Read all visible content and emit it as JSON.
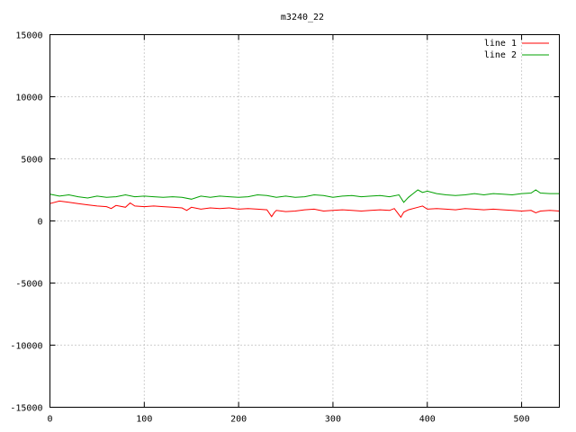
{
  "chart_data": {
    "type": "line",
    "title": "m3240_22",
    "xlabel": "",
    "ylabel": "",
    "xlim": [
      0,
      540
    ],
    "ylim": [
      -15000,
      15000
    ],
    "xticks": [
      0,
      100,
      200,
      300,
      400,
      500
    ],
    "yticks": [
      -15000,
      -10000,
      -5000,
      0,
      5000,
      10000,
      15000
    ],
    "grid": true,
    "legend_position": "top-right",
    "series": [
      {
        "name": "line 1",
        "color": "#ff0000",
        "x": [
          0,
          10,
          20,
          30,
          40,
          50,
          60,
          65,
          70,
          80,
          85,
          90,
          100,
          110,
          120,
          130,
          140,
          145,
          150,
          160,
          170,
          180,
          190,
          200,
          210,
          220,
          230,
          235,
          238,
          240,
          250,
          260,
          270,
          280,
          290,
          300,
          310,
          320,
          330,
          340,
          350,
          360,
          365,
          370,
          372,
          375,
          380,
          390,
          395,
          400,
          410,
          420,
          430,
          440,
          450,
          460,
          470,
          480,
          490,
          500,
          510,
          515,
          520,
          530,
          540
        ],
        "y": [
          1400,
          1600,
          1500,
          1400,
          1300,
          1200,
          1150,
          1000,
          1250,
          1100,
          1450,
          1200,
          1150,
          1200,
          1150,
          1100,
          1050,
          850,
          1100,
          950,
          1050,
          1000,
          1050,
          950,
          1000,
          950,
          900,
          350,
          700,
          850,
          750,
          800,
          900,
          950,
          800,
          850,
          900,
          850,
          800,
          850,
          900,
          850,
          1000,
          500,
          300,
          700,
          900,
          1100,
          1200,
          950,
          1000,
          950,
          900,
          1000,
          950,
          900,
          950,
          900,
          850,
          800,
          850,
          650,
          800,
          850,
          800
        ]
      },
      {
        "name": "line 2",
        "color": "#00a000",
        "x": [
          0,
          10,
          20,
          30,
          40,
          50,
          60,
          70,
          80,
          90,
          100,
          110,
          120,
          130,
          140,
          150,
          160,
          170,
          180,
          190,
          200,
          210,
          220,
          230,
          240,
          250,
          260,
          270,
          280,
          290,
          300,
          310,
          320,
          330,
          340,
          350,
          360,
          370,
          375,
          380,
          385,
          390,
          395,
          400,
          410,
          420,
          430,
          440,
          450,
          460,
          470,
          480,
          490,
          500,
          510,
          515,
          520,
          530,
          540
        ],
        "y": [
          2150,
          2000,
          2100,
          1950,
          1850,
          2000,
          1900,
          1950,
          2100,
          1950,
          2000,
          1950,
          1900,
          1950,
          1900,
          1750,
          2000,
          1900,
          2000,
          1950,
          1900,
          1950,
          2100,
          2050,
          1900,
          2000,
          1900,
          1950,
          2100,
          2050,
          1900,
          2000,
          2050,
          1950,
          2000,
          2050,
          1950,
          2100,
          1500,
          1900,
          2200,
          2500,
          2300,
          2400,
          2200,
          2100,
          2050,
          2100,
          2200,
          2100,
          2200,
          2150,
          2100,
          2200,
          2250,
          2500,
          2250,
          2200,
          2200
        ]
      }
    ]
  }
}
